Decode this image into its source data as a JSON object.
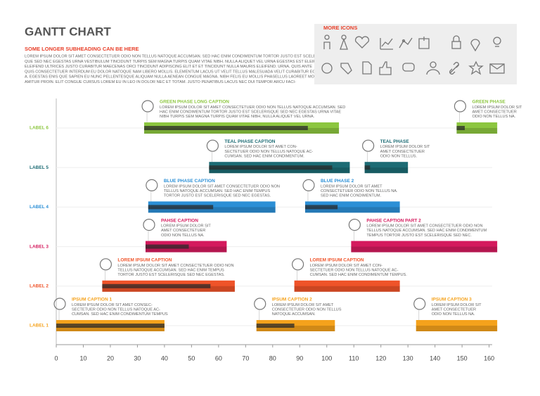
{
  "chart_data": {
    "type": "gantt",
    "title": "GANTT CHART",
    "subtitle": "SOME LONGER SUBHEADING CAN BE HERE",
    "description": [
      "LOREM IPSUM DOLOR SIT AMET CONSECTETUER ODIO NON TELLUS NATOQUE ACCUMSAN. SED HAC ENIM CONDIMENTUM TORTOR JUSTO EST SCELERIS-",
      "QUE SED NEC EGESTAS URNA VESTIBULUM TINCIDUNT TURPIS SEM MAGNA TURPIS QUAM VITAE NIBH. NULLA ALIQUET VEL URNA EGESTAS EST ELEIFEND",
      "ELEIFEND ULTRICES JUSTO CURABITUR MAECENAS ORCI TINCIDUNT ADIPISCING ELIT ET ET TINCIDUNT NULLA MAURIS ELEIFEND. URNA, QUIS ANTE",
      "QUIS CONSECTETUER INTERDUM EU DOLOR NATOQUE NAM LIBERO MOLLIS. ELEMENTUM LACUS UT VELIT TELLUS MALESUADA VELIT CURABITUR EGESTAS",
      "A. EGESTAS ENIS QUE SAPIEN EU NUNC PELLENTESQUE ALIQUAM NULLA AENEAN CONGUE MAGNA. NIBH FELIS EU MOLLIS PHASELLUS LAOREET MOLESTIE DOLOR",
      "AMITUR PROIN. ELIT CONGUE CURSUS LOREM EU IN LEO IN DOLOR NEC ET TOTAM. JUSTO PENATIBUS LACUS NEC DUI TEMPOR ARCU FACI-"
    ],
    "more_icons": "MORE ICONS",
    "xlim": [
      0,
      164
    ],
    "xticks": [
      0,
      10,
      20,
      30,
      40,
      50,
      60,
      70,
      80,
      90,
      100,
      110,
      120,
      130,
      140,
      150,
      160
    ],
    "grid": true,
    "rows": [
      {
        "label": "LABEL 1",
        "color": "#f5a21c",
        "phases": [
          {
            "caption": "IPSUM CAPTION 1",
            "text": [
              "LOREM IPSUM DOLOR SIT AMET CONSEC-",
              "SECTETUER ODIO NON TELLUS NATOQUE AC-",
              "CUMSAN. SED HAC ENIM CONDIMENTUM TEMPUS"
            ],
            "start": 0,
            "end": 40,
            "progress": 40
          },
          {
            "caption": "IPSUM CAPTION 2",
            "text": [
              "LOREM IPSUM DOLOR SIT AMET",
              "CONSECTETUER ODIO NON TELLUS",
              "NATOQUE ACCUMSAN."
            ],
            "start": 74,
            "end": 103,
            "progress": 88
          },
          {
            "caption": "IPSUM CAPTION 3",
            "text": [
              "LOREM IPSUM DOLOR SIT",
              "AMET CONSECTETUER",
              "ODIO NON TELLUS NA."
            ],
            "start": 133,
            "end": 163
          }
        ]
      },
      {
        "label": "LABEL 2",
        "color": "#ef5329",
        "phases": [
          {
            "caption": "LOREM IPSUM CAPTION",
            "text": [
              "LOREM IPSUM DOLOR SIT AMET CONSECTETUER ODIO NON",
              "TELLUS NATOQUE ACCUMSAN. SED HAC ENIM TEMPUS",
              "TORTOR JUSTO EST SCELERISQUE SED NEC EGESTAS."
            ],
            "start": 17,
            "end": 66,
            "progress": 57
          },
          {
            "caption": "LOREM IPSUM CAPTION",
            "text": [
              "LOREM IPSUM DOLOR SIT AMET CON-",
              "SECTETUER ODIO NON TELLUS NATOQUE AC-",
              "CUMSAN. SED HAC ENIM CONDIMENTUM TEMPUS."
            ],
            "start": 88,
            "end": 127
          }
        ]
      },
      {
        "label": "LABEL 3",
        "color": "#d41a5d",
        "phases": [
          {
            "caption": "PAHSE CAPTION",
            "text": [
              "LOREM IPSUM DOLOR SIT",
              "AMET CONSECTETUER",
              "ODIO NON TELLUS NA."
            ],
            "start": 33,
            "end": 63,
            "progress": 49
          },
          {
            "caption": "PAHSE CAPTION PART 2",
            "text": [
              "LOREM IPSUM DOLOR SIT AMET CONSECTETUER ODIO NON",
              "TELLUS NATOQUE ACCUMSAN. SED HAC ENIM CONDIMENTUM",
              "TEMPUS TORTOR JUSTO EST SCELERISQUE SED NEC."
            ],
            "start": 109,
            "end": 163
          }
        ]
      },
      {
        "label": "LABEL 4",
        "color": "#2b8fd6",
        "phases": [
          {
            "caption": "BLUE PHASE CAPTION",
            "text": [
              "LOREM IPSUM DOLOR SIT AMET CONSECTETUER ODIO NON",
              "TELLUS NATOQUE ACCUMSAN. SED HAC ENIM TEMPUS",
              "TORTOR JUSTO EST SCELERISQUE SED NEC EGESTAS."
            ],
            "start": 34,
            "end": 81,
            "progress": 58
          },
          {
            "caption": "BLUE PHASE 2",
            "text": [
              "LOREM IPSUM DOLOR SIT AMET",
              "CONSECTETUER ODIO NON TELLUS NA.",
              "SED HAC ENIM CONDIMENTUM."
            ],
            "start": 92,
            "end": 127,
            "progress": 104
          }
        ]
      },
      {
        "label": "LABEL 5",
        "color": "#1c6b74",
        "phases": [
          {
            "caption": "TEAL PHASE CAPTION",
            "text": [
              "LOREM IPSUM DOLOR SIT AMET CON-",
              "SECTETUER ODIO NON TELLUS NATOQUE AC-",
              "CUMSAN. SED HAC ENIM CONDIMENTUM."
            ],
            "start": 56.5,
            "end": 108.5,
            "progress": 102
          },
          {
            "caption": "TEAL PHASE",
            "text": [
              "LOREM IPSUM DOLOR SIT",
              "AMET CONSECTETUER",
              "ODIO NON TELLUS."
            ],
            "start": 114,
            "end": 130,
            "progress": 116
          }
        ]
      },
      {
        "label": "LABEL 6",
        "color": "#8cc63f",
        "phases": [
          {
            "caption": "GREEN PHASE LONG CAPTION",
            "text": [
              "LOREM IPSUM DOLOR SIT AMET CONSECTETUER ODIO NON TELLUS NATOQUE ACCUMSAN. SED",
              "HAC ENIM CONDIMENTUM TORTOR JUSTO EST SCELERISQUE SED NEC EGESTAS URNA VITAE",
              "NIBH TURPIS SEM MAGNA TURPIS QUAM VITAE NIBH, NULLA ALIQUET VEL URNA."
            ],
            "start": 32.5,
            "end": 104.5,
            "progress": 93
          },
          {
            "caption": "GREEN PHASE",
            "text": [
              "LOREM IPSUM DOLOR SIT",
              "AMET CONSECTETUER",
              "ODIO NON TELLUS NA."
            ],
            "start": 148,
            "end": 163,
            "progress": 151
          }
        ]
      }
    ]
  }
}
